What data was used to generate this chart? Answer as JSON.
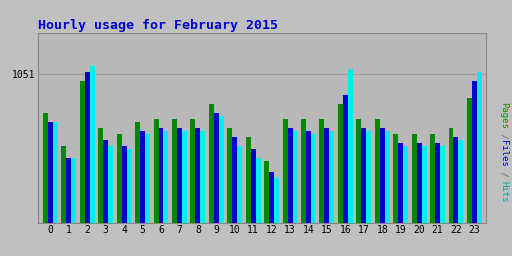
{
  "title": "Hourly usage for February 2015",
  "title_color": "#0000cc",
  "hours": [
    0,
    1,
    2,
    3,
    4,
    5,
    6,
    7,
    8,
    9,
    10,
    11,
    12,
    13,
    14,
    15,
    16,
    17,
    18,
    19,
    20,
    21,
    22,
    23
  ],
  "ytick_label": "1051",
  "ytick_value": 1051,
  "pages": [
    985,
    930,
    1040,
    960,
    950,
    970,
    975,
    975,
    975,
    1000,
    960,
    945,
    905,
    975,
    975,
    975,
    1000,
    975,
    975,
    950,
    950,
    950,
    960,
    1010
  ],
  "files": [
    970,
    910,
    1055,
    940,
    930,
    955,
    960,
    960,
    960,
    985,
    945,
    925,
    885,
    960,
    955,
    960,
    1015,
    960,
    960,
    935,
    935,
    935,
    945,
    1040
  ],
  "hits": [
    970,
    910,
    1065,
    930,
    925,
    950,
    955,
    955,
    955,
    980,
    930,
    910,
    875,
    955,
    950,
    955,
    1060,
    955,
    955,
    930,
    930,
    930,
    940,
    1055
  ],
  "pages_color": "#008800",
  "files_color": "#0000cc",
  "hits_color": "#00eeee",
  "bg_outer": "#c0c0c0",
  "bg_plot": "#b8b8b8",
  "bar_width": 0.27,
  "ylim_min": 800,
  "ylim_max": 1120,
  "border_color": "#888888"
}
